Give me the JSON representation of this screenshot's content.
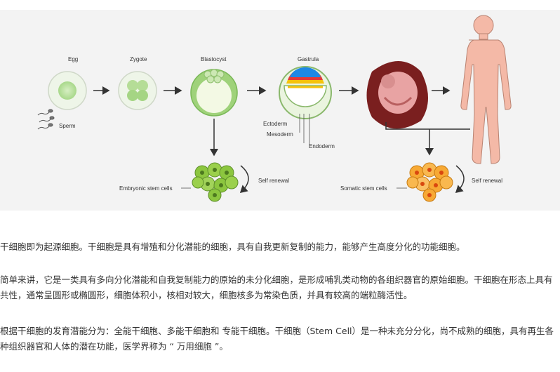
{
  "figure": {
    "labels": {
      "egg": "Egg",
      "zygote": "Zygote",
      "blastocyst": "Blastocyst",
      "gastrula": "Gastrula",
      "sperm": "Sperm",
      "ectoderm": "Ectoderm",
      "mesoderm": "Mesoderm",
      "endoderm": "Endoderm",
      "embryonic_stem_cells": "Embryonic stem cells",
      "self_renewal_left": "Self renewal",
      "somatic_stem_cells": "Somatic stem cells",
      "self_renewal_right": "Self renewal"
    },
    "colors": {
      "egg_fill": "#b8e09a",
      "embryonic_cell": "#8cc63f",
      "somatic_cell": "#f7a934",
      "ectoderm": "#1e88e5",
      "mesoderm": "#e53935",
      "endoderm": "#f6c20a",
      "fetus": "#c62828",
      "skin": "#f4b9a7"
    }
  },
  "paragraphs": {
    "p1": "干细胞即为起源细胞。干细胞是具有增殖和分化潜能的细胞，具有自我更新复制的能力，能够产生高度分化的功能细胞。",
    "p2": "简单来讲，它是一类具有多向分化潜能和自我复制能力的原始的未分化细胞，是形成哺乳类动物的各组织器官的原始细胞。干细胞在形态上具有共性，通常呈圆形或椭圆形，细胞体积小，核相对较大，细胞核多为常染色质，并具有较高的端粒酶活性。",
    "p3": "根据干细胞的发育潜能分为：全能干细胞、多能干细胞和 专能干细胞。干细胞（Stem Cell）是一种未充分分化，尚不成熟的细胞，具有再生各种组织器官和人体的潜在功能，医学界称为 “ 万用细胞 ”。"
  }
}
